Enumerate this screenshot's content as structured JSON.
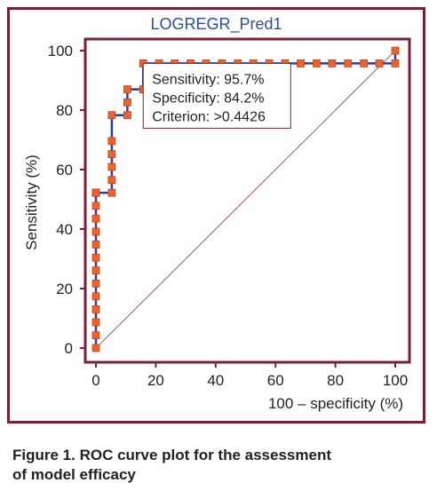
{
  "chart_data": {
    "type": "line",
    "title": "LOGREGR_Pred1",
    "xlabel": "100 – specificity (%)",
    "ylabel": "Sensitivity (%)",
    "xlim": [
      0,
      100
    ],
    "ylim": [
      0,
      100
    ],
    "xticks": [
      "0",
      "20",
      "40",
      "60",
      "80",
      "100"
    ],
    "yticks": [
      "0",
      "20",
      "40",
      "60",
      "80",
      "100"
    ],
    "grid": false,
    "series": [
      {
        "x": [
          0,
          0,
          0,
          0,
          0,
          0,
          0,
          0,
          0,
          0,
          0,
          0,
          0,
          0,
          0,
          0,
          0,
          5.3,
          5.3,
          5.3,
          5.3,
          5.3,
          5.3,
          10.5,
          10.5,
          10.5,
          15.8,
          15.8,
          21.1,
          26.3,
          31.6,
          36.8,
          42.1,
          47.4,
          52.6,
          57.9,
          63.2,
          68.4,
          73.7,
          78.9,
          84.2,
          89.5,
          94.7,
          100,
          100
        ],
        "y": [
          0,
          4.3,
          8.7,
          13,
          17.4,
          21.7,
          26.1,
          30.4,
          34.8,
          39.1,
          43.5,
          47.8,
          52.2,
          52.2,
          52.2,
          52.2,
          52.2,
          52.2,
          56.5,
          60.9,
          65.2,
          69.6,
          78.3,
          78.3,
          82.6,
          87,
          87,
          95.7,
          95.7,
          95.7,
          95.7,
          95.7,
          95.7,
          95.7,
          95.7,
          95.7,
          95.7,
          95.7,
          95.7,
          95.7,
          95.7,
          95.7,
          95.7,
          95.7,
          100
        ],
        "line_color": "#2b3f9e",
        "marker_color": "#f0622a"
      }
    ],
    "diagonal_color": "#a0606a",
    "operating_point": {
      "x": 15.8,
      "y": 95.7
    },
    "annotation": [
      "Sensitivity: 95.7%",
      "Specificity: 84.2%",
      "Criterion: >0.4426"
    ]
  },
  "caption": {
    "line1": "Figure 1. ROC curve plot for the assessment",
    "line2": "of model efficacy"
  },
  "colors": {
    "frame": "#7a1f3a",
    "axis": "#7a1f3a",
    "text": "#222222"
  }
}
